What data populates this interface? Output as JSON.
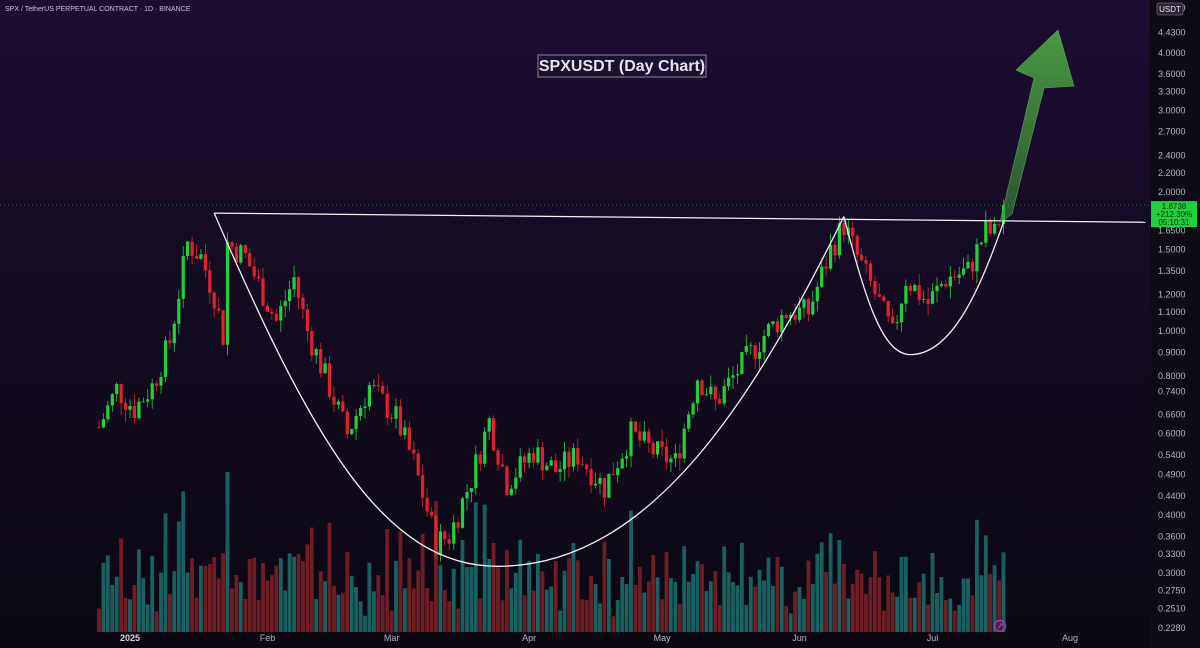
{
  "header": {
    "symbol_line": "SPX / TetherUS PERPETUAL CONTRACT · 1D · BINANCE"
  },
  "currency_badge": "USDT",
  "annotation_title": "SPXUSDT (Day Chart)",
  "price_badge": {
    "price": "1.8738",
    "change": "+212.30%",
    "countdown": "05:10:31"
  },
  "colors": {
    "up": "#1fd13a",
    "down": "#e0222d",
    "vol_up": "#1b6b68",
    "vol_down": "#7a2027",
    "background_top": "#1d0d33",
    "background_bottom": "#0b0812",
    "arrow": "#3f8f3a",
    "pattern_line": "#f2f2f2"
  },
  "chart_data": {
    "type": "candlestick",
    "title": "SPXUSDT (Day Chart)",
    "y_scale": "log",
    "y_ticks": [
      "5.0000",
      "4.4300",
      "4.0000",
      "3.6000",
      "3.3000",
      "3.0000",
      "2.7000",
      "2.4000",
      "2.2000",
      "2.0000",
      "1.8500",
      "1.6500",
      "1.5000",
      "1.3500",
      "1.2000",
      "1.1000",
      "1.0000",
      "0.9000",
      "0.8000",
      "0.7400",
      "0.6600",
      "0.6000",
      "0.5400",
      "0.4900",
      "0.4400",
      "0.4000",
      "0.3600",
      "0.3300",
      "0.3000",
      "0.2750",
      "0.2510",
      "0.2280"
    ],
    "x_ticks": [
      {
        "label": "2025",
        "date": "2025-01-01",
        "bold": true
      },
      {
        "label": "Feb",
        "date": "2025-02-01"
      },
      {
        "label": "Mar",
        "date": "2025-03-01"
      },
      {
        "label": "Apr",
        "date": "2025-04-01"
      },
      {
        "label": "May",
        "date": "2025-05-01"
      },
      {
        "label": "Jun",
        "date": "2025-06-01"
      },
      {
        "label": "Jul",
        "date": "2025-07-01"
      },
      {
        "label": "Aug",
        "date": "2025-08-01"
      }
    ],
    "neckline": {
      "from": {
        "date": "2025-01-20",
        "price": 1.8
      },
      "to": {
        "date": "2025-08-18",
        "price": 1.72
      }
    },
    "cup": {
      "from": {
        "date": "2025-01-20",
        "price": 1.8
      },
      "bottom": {
        "date": "2025-03-25",
        "price": 0.31
      },
      "to": {
        "date": "2025-06-11",
        "price": 1.77
      }
    },
    "handle": {
      "from": {
        "date": "2025-06-11",
        "price": 1.77
      },
      "bottom": {
        "date": "2025-06-26",
        "price": 0.89
      },
      "to": {
        "date": "2025-07-17",
        "price": 1.72
      }
    },
    "last_price": 1.8738,
    "change_pct": 212.3,
    "path": [
      [
        "2024-12-25",
        0.62
      ],
      [
        "2024-12-29",
        0.75
      ],
      [
        "2025-01-02",
        0.68
      ],
      [
        "2025-01-06",
        0.76
      ],
      [
        "2025-01-10",
        0.95
      ],
      [
        "2025-01-14",
        1.55
      ],
      [
        "2025-01-17",
        1.45
      ],
      [
        "2025-01-20",
        1.2
      ],
      [
        "2025-01-22",
        0.98
      ],
      [
        "2025-01-23",
        1.55
      ],
      [
        "2025-01-27",
        1.45
      ],
      [
        "2025-02-03",
        1.05
      ],
      [
        "2025-02-07",
        1.3
      ],
      [
        "2025-02-10",
        1.0
      ],
      [
        "2025-02-14",
        0.8
      ],
      [
        "2025-02-19",
        0.6
      ],
      [
        "2025-02-24",
        0.76
      ],
      [
        "2025-03-02",
        0.65
      ],
      [
        "2025-03-06",
        0.52
      ],
      [
        "2025-03-11",
        0.35
      ],
      [
        "2025-03-14",
        0.36
      ],
      [
        "2025-03-19",
        0.48
      ],
      [
        "2025-03-23",
        0.64
      ],
      [
        "2025-03-27",
        0.47
      ],
      [
        "2025-04-02",
        0.55
      ],
      [
        "2025-04-07",
        0.5
      ],
      [
        "2025-04-12",
        0.54
      ],
      [
        "2025-04-18",
        0.46
      ],
      [
        "2025-04-24",
        0.6
      ],
      [
        "2025-04-29",
        0.55
      ],
      [
        "2025-05-04",
        0.52
      ],
      [
        "2025-05-09",
        0.8
      ],
      [
        "2025-05-13",
        0.7
      ],
      [
        "2025-05-18",
        0.82
      ],
      [
        "2025-05-24",
        0.98
      ],
      [
        "2025-05-29",
        1.1
      ],
      [
        "2025-06-03",
        1.1
      ],
      [
        "2025-06-08",
        1.5
      ],
      [
        "2025-06-11",
        1.7
      ],
      [
        "2025-06-14",
        1.45
      ],
      [
        "2025-06-19",
        1.15
      ],
      [
        "2025-06-22",
        0.98
      ],
      [
        "2025-06-25",
        1.3
      ],
      [
        "2025-06-30",
        1.15
      ],
      [
        "2025-07-04",
        1.3
      ],
      [
        "2025-07-09",
        1.35
      ],
      [
        "2025-07-13",
        1.65
      ],
      [
        "2025-07-15",
        1.62
      ],
      [
        "2025-07-17",
        1.87
      ]
    ],
    "candle_count": 205,
    "seed": 7
  }
}
